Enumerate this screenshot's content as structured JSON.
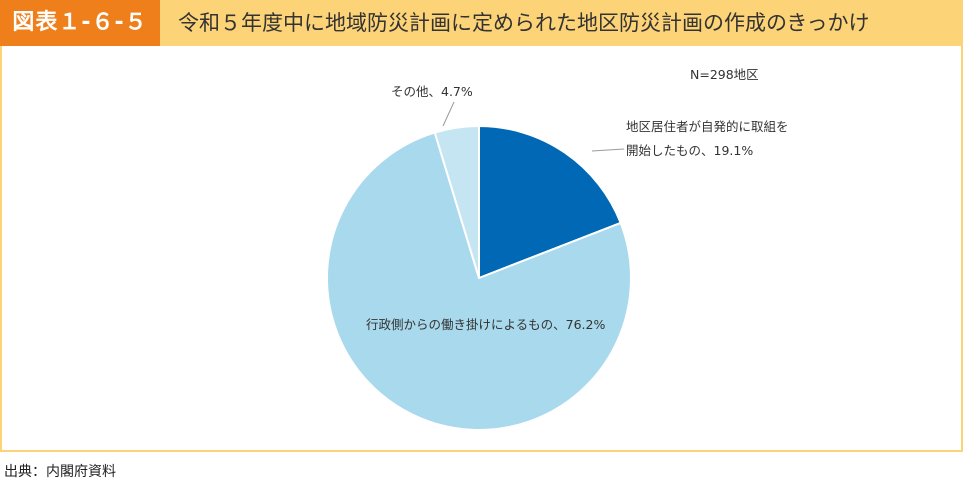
{
  "header": {
    "figure_label": "図表１-６-５",
    "title": "令和５年度中に地域防災計画に定められた地区防災計画の作成のきっかけ"
  },
  "source": "出典：内閣府資料",
  "colors": {
    "header_bg": "#fcd377",
    "label_bg": "#ef7f1a",
    "slice_resident": "#0068b5",
    "slice_admin": "#a9d9ec",
    "slice_other": "#c5e5f3"
  },
  "chart_data": {
    "type": "pie",
    "note": "N=298地区",
    "start_angle_deg": 0,
    "direction": "clockwise",
    "slices": [
      {
        "label_lines": [
          "地区居住者が自発的に取組を",
          "開始したもの、19.1%"
        ],
        "value": 19.1,
        "color": "#0068b5"
      },
      {
        "label_lines": [
          "行政側からの働き掛けによるもの、76.2%"
        ],
        "value": 76.2,
        "color": "#a9d9ec"
      },
      {
        "label_lines": [
          "その他、4.7%"
        ],
        "value": 4.7,
        "color": "#c5e5f3"
      }
    ]
  }
}
